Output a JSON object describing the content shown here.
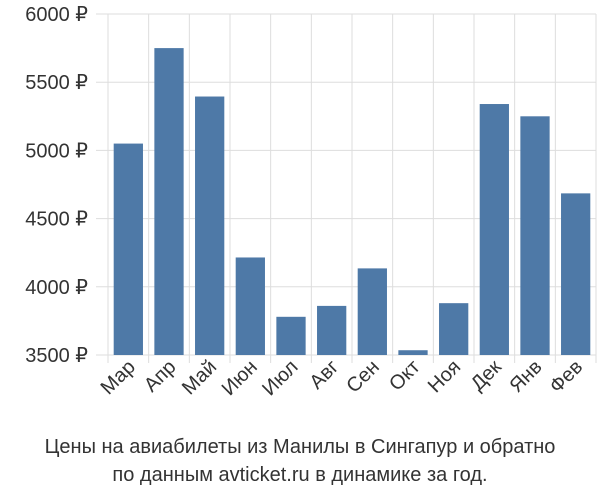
{
  "caption": {
    "line1": "Цены на авиабилеты из Манилы в Сингапур и обратно",
    "line2": "по данным avticket.ru в динамике за год."
  },
  "chart_data": {
    "type": "bar",
    "categories": [
      "Мар",
      "Апр",
      "Май",
      "Июн",
      "Июл",
      "Авг",
      "Сен",
      "Окт",
      "Ноя",
      "Дек",
      "Янв",
      "Фев"
    ],
    "values": [
      5050,
      5750,
      5395,
      4215,
      3780,
      3860,
      4135,
      3535,
      3880,
      5340,
      5250,
      4685
    ],
    "ylim": [
      3500,
      6000
    ],
    "yticks": [
      3500,
      4000,
      4500,
      5000,
      5500,
      6000
    ],
    "ytick_labels": [
      "3500 ₽",
      "4000 ₽",
      "4500 ₽",
      "5000 ₽",
      "5500 ₽",
      "6000 ₽"
    ],
    "grid": true,
    "bar_color": "#4e79a7",
    "grid_color": "#dddddd"
  }
}
